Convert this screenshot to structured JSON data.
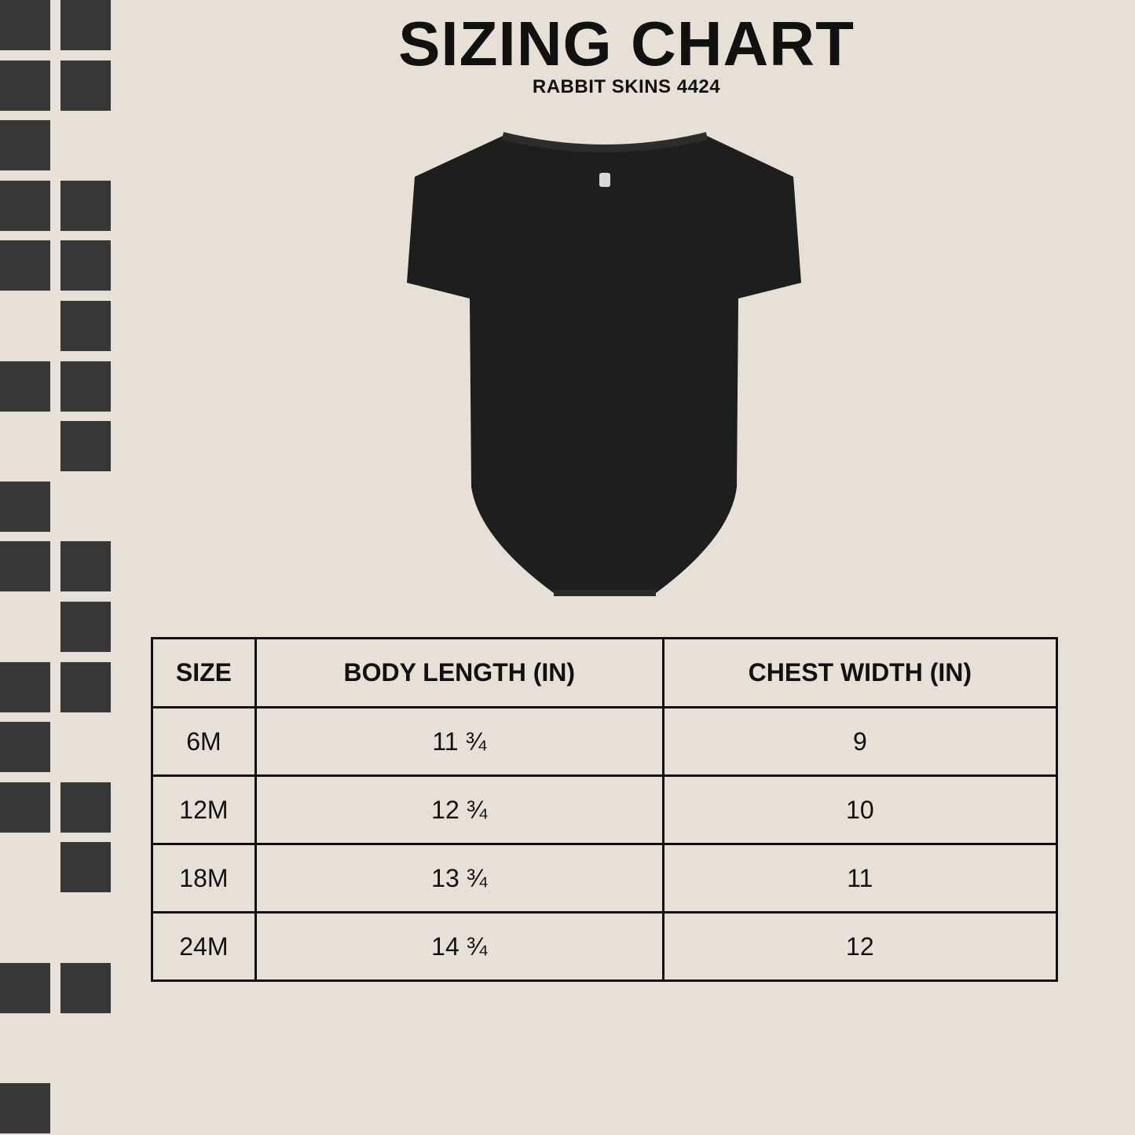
{
  "title": "SIZING CHART",
  "subtitle": "RABBIT SKINS 4424",
  "colors": {
    "background": "#e6e0d6",
    "squares": "#383838",
    "garment": "#1e1e1e"
  },
  "image": "black-short-sleeve-baby-onesie",
  "table": {
    "headers": [
      "SIZE",
      "BODY LENGTH (IN)",
      "CHEST WIDTH (IN)"
    ],
    "rows": [
      [
        "6M",
        "11 ¾",
        "9"
      ],
      [
        "12M",
        "12 ¾",
        "10"
      ],
      [
        "18M",
        "13 ¾",
        "11"
      ],
      [
        "24M",
        "14 ¾",
        "12"
      ]
    ]
  }
}
